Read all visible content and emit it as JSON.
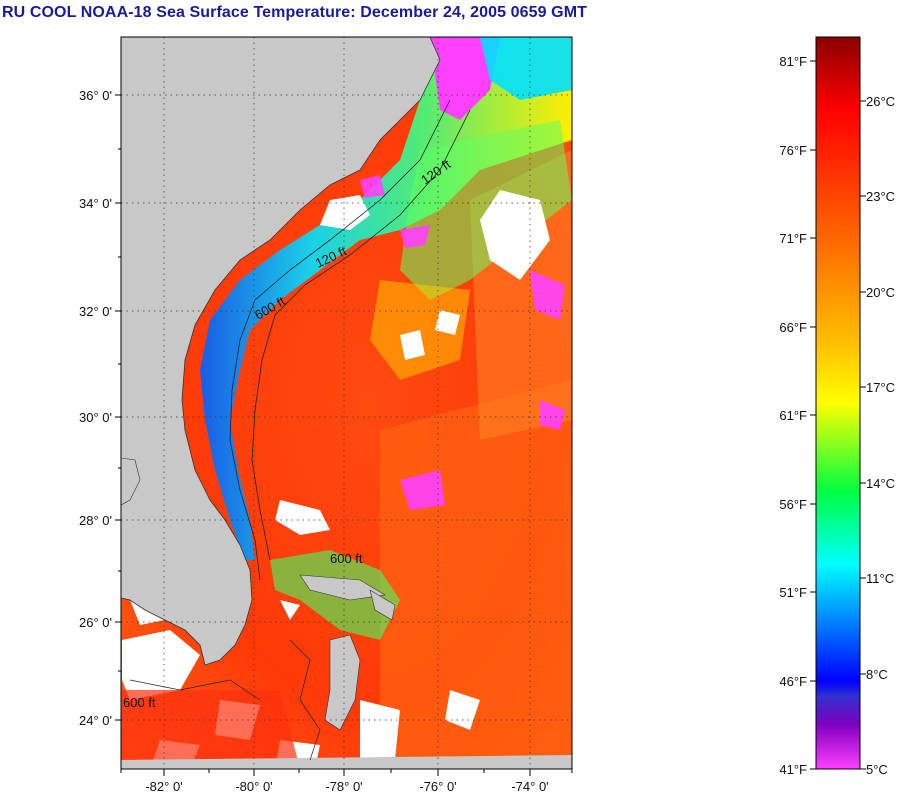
{
  "header": {
    "title": "RU COOL  NOAA-18  Sea Surface Temperature:  December 24, 2005 0659 GMT"
  },
  "map": {
    "lat_labels": [
      "36° 0'",
      "34° 0'",
      "32° 0'",
      "30° 0'",
      "28° 0'",
      "26° 0'",
      "24° 0'"
    ],
    "lon_labels": [
      "-82° 0'",
      "-80° 0'",
      "-78° 0'",
      "-76° 0'",
      "-74° 0'"
    ],
    "isobath_labels": [
      "120 ft",
      "600 ft",
      "600 ft",
      "120 ft",
      "600 ft"
    ],
    "land_color": "#c8c8c8",
    "cloud_color": "#ffffff"
  },
  "legend": {
    "f_labels": [
      "81°F",
      "76°F",
      "71°F",
      "66°F",
      "61°F",
      "56°F",
      "51°F",
      "46°F",
      "41°F"
    ],
    "c_labels": [
      "26°C",
      "23°C",
      "20°C",
      "17°C",
      "14°C",
      "11°C",
      "8°C",
      "5°C"
    ],
    "colors": [
      "#8b0000",
      "#ff0000",
      "#ff6a00",
      "#ffc000",
      "#ffff00",
      "#00ff40",
      "#00ffff",
      "#0080ff",
      "#0000ff",
      "#8000c0",
      "#ff40ff"
    ]
  }
}
